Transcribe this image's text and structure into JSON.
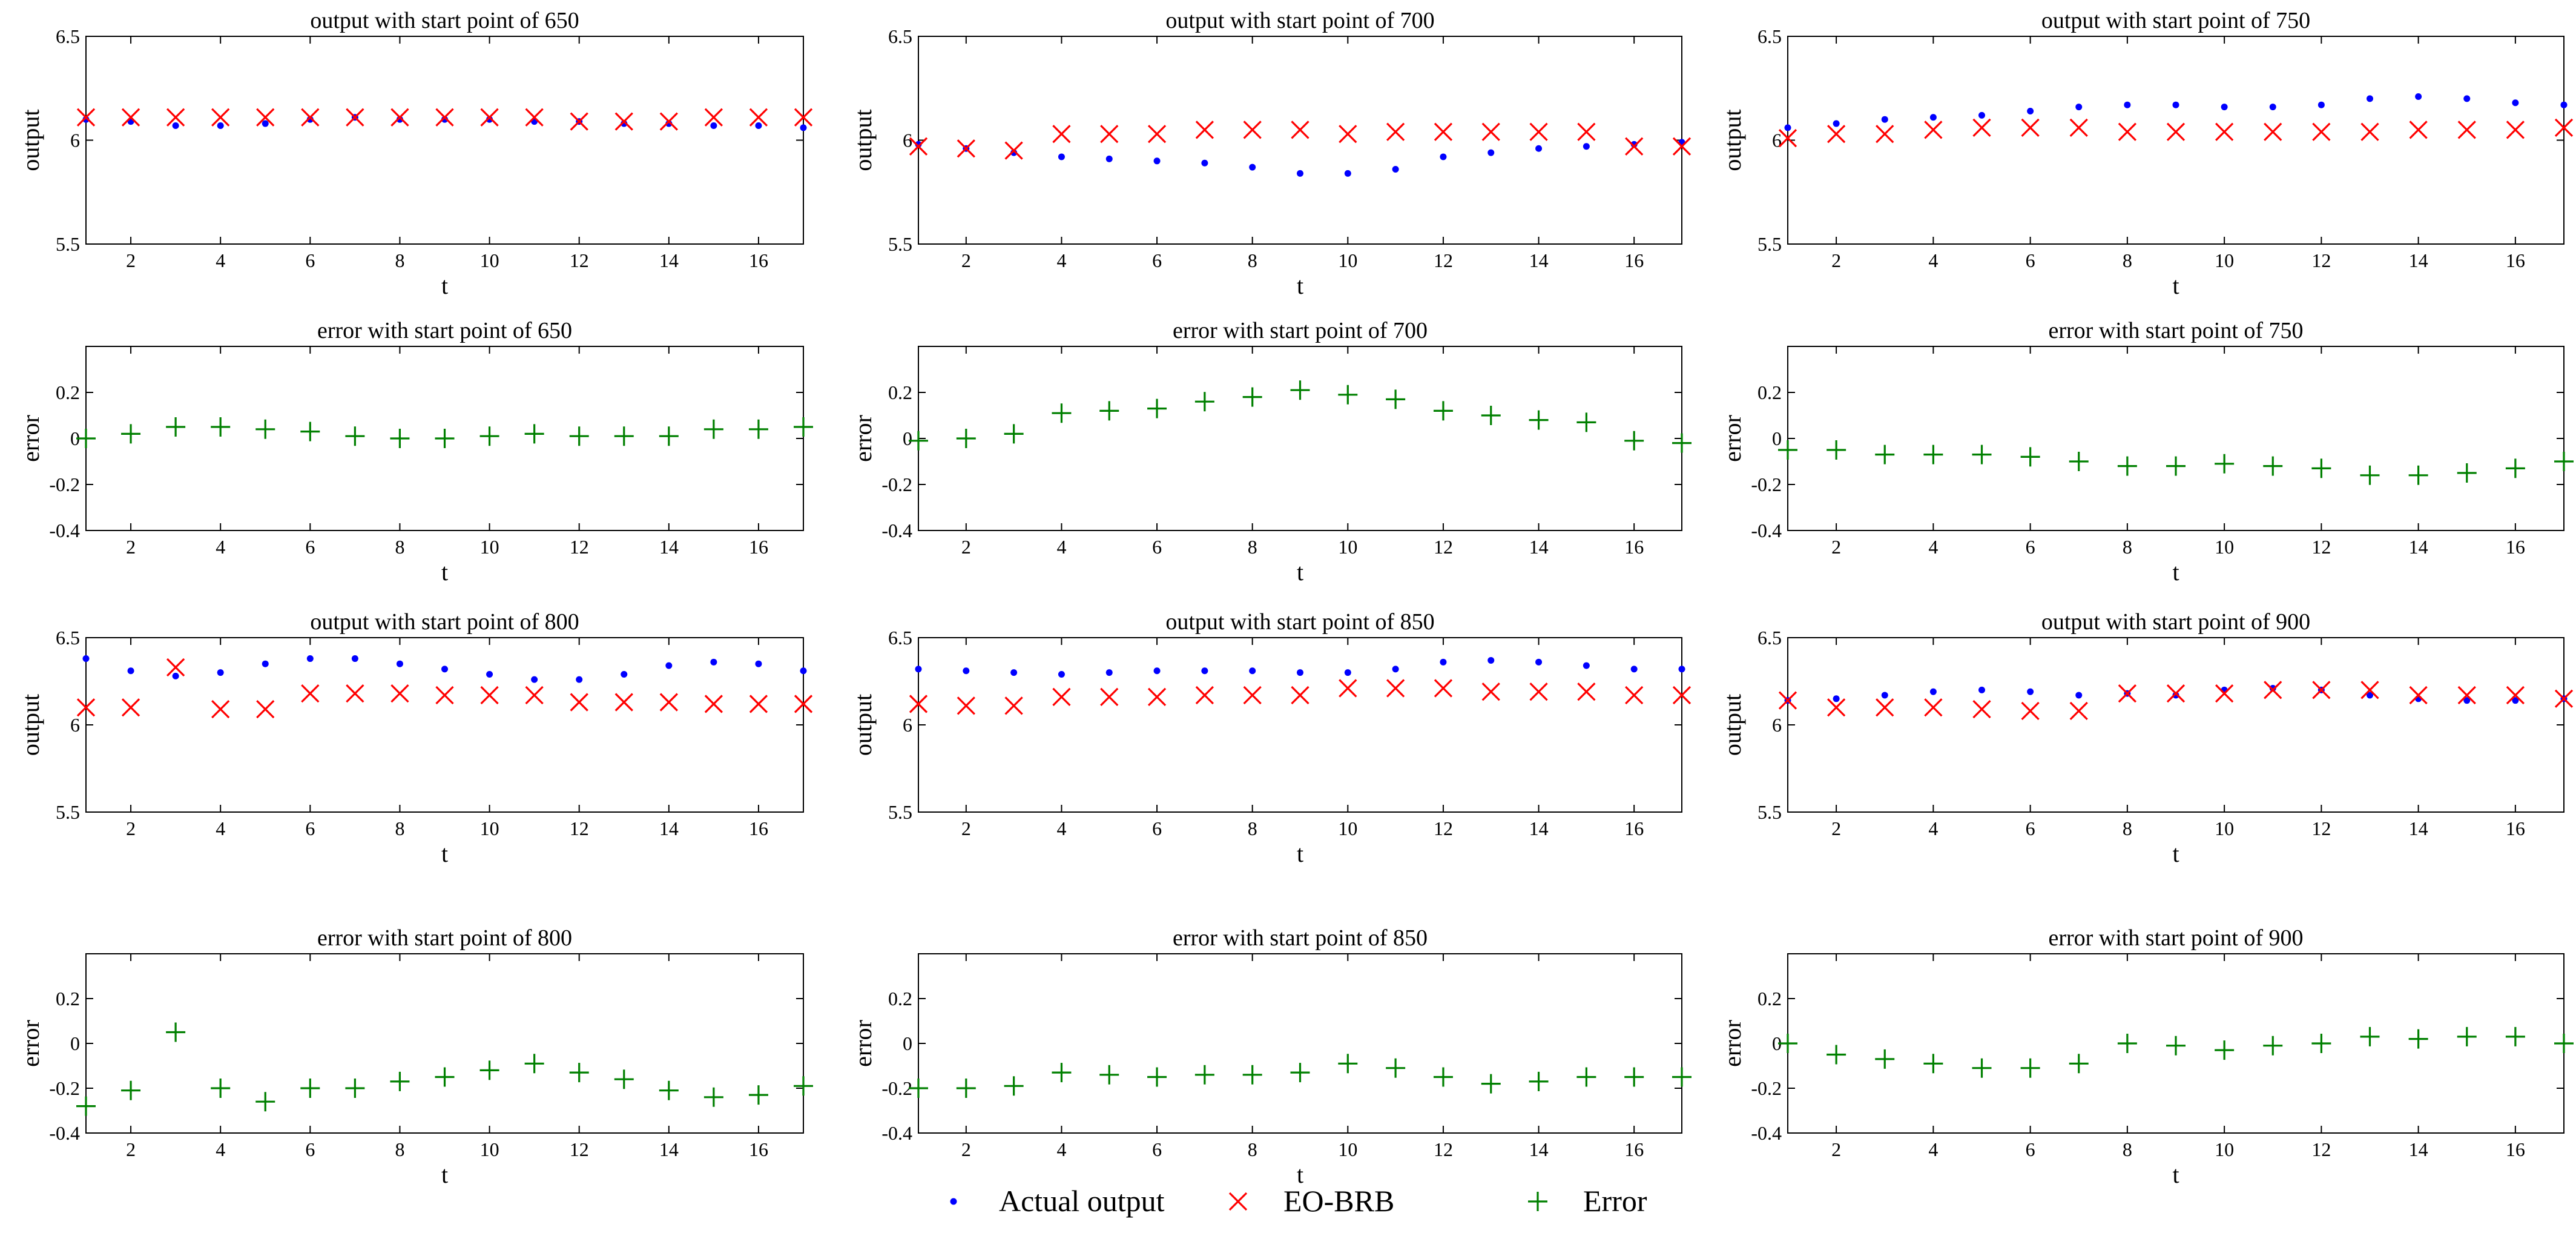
{
  "figure": {
    "legend": [
      {
        "label": "Actual output",
        "marker": "dot",
        "color": "#0000FF"
      },
      {
        "label": "EO-BRB",
        "marker": "x",
        "color": "#FF0000"
      },
      {
        "label": "Error",
        "marker": "plus",
        "color": "#008000"
      }
    ]
  },
  "chart_data": [
    {
      "type": "scatter",
      "kind": "output",
      "title": "output with start point of 650",
      "xlabel": "t",
      "ylabel": "output",
      "xlim": [
        1,
        17
      ],
      "ylim": [
        5.5,
        6.5
      ],
      "xticks": [
        2,
        4,
        6,
        8,
        10,
        12,
        14,
        16
      ],
      "xtick_labels": [
        "2",
        "4",
        "6",
        "8",
        "10",
        "12",
        "14",
        "16"
      ],
      "yticks": [
        5.5,
        6,
        6.5
      ],
      "ytick_labels": [
        "5.5",
        "6",
        "6.5"
      ],
      "x": [
        1,
        2,
        3,
        4,
        5,
        6,
        7,
        8,
        9,
        10,
        11,
        12,
        13,
        14,
        15,
        16,
        17
      ],
      "series": [
        {
          "name": "Actual output",
          "values": [
            6.1,
            6.09,
            6.07,
            6.07,
            6.08,
            6.1,
            6.11,
            6.1,
            6.1,
            6.1,
            6.09,
            6.09,
            6.08,
            6.08,
            6.07,
            6.07,
            6.06
          ]
        },
        {
          "name": "EO-BRB",
          "values": [
            6.11,
            6.11,
            6.11,
            6.11,
            6.11,
            6.11,
            6.11,
            6.11,
            6.11,
            6.11,
            6.11,
            6.09,
            6.09,
            6.09,
            6.11,
            6.11,
            6.11
          ]
        }
      ]
    },
    {
      "type": "scatter",
      "kind": "output",
      "title": "output with start point of 700",
      "xlabel": "t",
      "ylabel": "output",
      "xlim": [
        1,
        17
      ],
      "ylim": [
        5.5,
        6.5
      ],
      "xticks": [
        2,
        4,
        6,
        8,
        10,
        12,
        14,
        16
      ],
      "xtick_labels": [
        "2",
        "4",
        "6",
        "8",
        "10",
        "12",
        "14",
        "16"
      ],
      "yticks": [
        5.5,
        6,
        6.5
      ],
      "ytick_labels": [
        "5.5",
        "6",
        "6.5"
      ],
      "x": [
        1,
        2,
        3,
        4,
        5,
        6,
        7,
        8,
        9,
        10,
        11,
        12,
        13,
        14,
        15,
        16,
        17
      ],
      "series": [
        {
          "name": "Actual output",
          "values": [
            5.98,
            5.96,
            5.94,
            5.92,
            5.91,
            5.9,
            5.89,
            5.87,
            5.84,
            5.84,
            5.86,
            5.92,
            5.94,
            5.96,
            5.97,
            5.98,
            5.99
          ]
        },
        {
          "name": "EO-BRB",
          "values": [
            5.97,
            5.96,
            5.95,
            6.03,
            6.03,
            6.03,
            6.05,
            6.05,
            6.05,
            6.03,
            6.04,
            6.04,
            6.04,
            6.04,
            6.04,
            5.97,
            5.97
          ]
        }
      ]
    },
    {
      "type": "scatter",
      "kind": "output",
      "title": "output with start point of 750",
      "xlabel": "t",
      "ylabel": "output",
      "xlim": [
        1,
        17
      ],
      "ylim": [
        5.5,
        6.5
      ],
      "xticks": [
        2,
        4,
        6,
        8,
        10,
        12,
        14,
        16
      ],
      "xtick_labels": [
        "2",
        "4",
        "6",
        "8",
        "10",
        "12",
        "14",
        "16"
      ],
      "yticks": [
        5.5,
        6,
        6.5
      ],
      "ytick_labels": [
        "5.5",
        "6",
        "6.5"
      ],
      "x": [
        1,
        2,
        3,
        4,
        5,
        6,
        7,
        8,
        9,
        10,
        11,
        12,
        13,
        14,
        15,
        16,
        17
      ],
      "series": [
        {
          "name": "Actual output",
          "values": [
            6.06,
            6.08,
            6.1,
            6.11,
            6.12,
            6.14,
            6.16,
            6.17,
            6.17,
            6.16,
            6.16,
            6.17,
            6.2,
            6.21,
            6.2,
            6.18,
            6.17
          ]
        },
        {
          "name": "EO-BRB",
          "values": [
            6.01,
            6.03,
            6.03,
            6.05,
            6.06,
            6.06,
            6.06,
            6.04,
            6.04,
            6.04,
            6.04,
            6.04,
            6.04,
            6.05,
            6.05,
            6.05,
            6.06
          ]
        }
      ]
    },
    {
      "type": "scatter",
      "kind": "error",
      "title": "error with start point of 650",
      "xlabel": "t",
      "ylabel": "error",
      "xlim": [
        1,
        17
      ],
      "ylim": [
        -0.4,
        0.4
      ],
      "xticks": [
        2,
        4,
        6,
        8,
        10,
        12,
        14,
        16
      ],
      "xtick_labels": [
        "2",
        "4",
        "6",
        "8",
        "10",
        "12",
        "14",
        "16"
      ],
      "yticks": [
        -0.4,
        -0.2,
        0,
        0.2
      ],
      "ytick_labels": [
        "-0.4",
        "-0.2",
        "0",
        "0.2"
      ],
      "x": [
        1,
        2,
        3,
        4,
        5,
        6,
        7,
        8,
        9,
        10,
        11,
        12,
        13,
        14,
        15,
        16,
        17
      ],
      "series": [
        {
          "name": "Error",
          "values": [
            0.0,
            0.02,
            0.05,
            0.05,
            0.04,
            0.03,
            0.01,
            0.0,
            0.0,
            0.01,
            0.02,
            0.01,
            0.01,
            0.01,
            0.04,
            0.04,
            0.05
          ]
        }
      ]
    },
    {
      "type": "scatter",
      "kind": "error",
      "title": "error with start point of 700",
      "xlabel": "t",
      "ylabel": "error",
      "xlim": [
        1,
        17
      ],
      "ylim": [
        -0.4,
        0.4
      ],
      "xticks": [
        2,
        4,
        6,
        8,
        10,
        12,
        14,
        16
      ],
      "xtick_labels": [
        "2",
        "4",
        "6",
        "8",
        "10",
        "12",
        "14",
        "16"
      ],
      "yticks": [
        -0.4,
        -0.2,
        0,
        0.2
      ],
      "ytick_labels": [
        "-0.4",
        "-0.2",
        "0",
        "0.2"
      ],
      "x": [
        1,
        2,
        3,
        4,
        5,
        6,
        7,
        8,
        9,
        10,
        11,
        12,
        13,
        14,
        15,
        16,
        17
      ],
      "series": [
        {
          "name": "Error",
          "values": [
            -0.01,
            0.0,
            0.02,
            0.11,
            0.12,
            0.13,
            0.16,
            0.18,
            0.21,
            0.19,
            0.17,
            0.12,
            0.1,
            0.08,
            0.07,
            -0.01,
            -0.02
          ]
        }
      ]
    },
    {
      "type": "scatter",
      "kind": "error",
      "title": "error with start point of 750",
      "xlabel": "t",
      "ylabel": "error",
      "xlim": [
        1,
        17
      ],
      "ylim": [
        -0.4,
        0.4
      ],
      "xticks": [
        2,
        4,
        6,
        8,
        10,
        12,
        14,
        16
      ],
      "xtick_labels": [
        "2",
        "4",
        "6",
        "8",
        "10",
        "12",
        "14",
        "16"
      ],
      "yticks": [
        -0.4,
        -0.2,
        0,
        0.2
      ],
      "ytick_labels": [
        "-0.4",
        "-0.2",
        "0",
        "0.2"
      ],
      "x": [
        1,
        2,
        3,
        4,
        5,
        6,
        7,
        8,
        9,
        10,
        11,
        12,
        13,
        14,
        15,
        16,
        17
      ],
      "series": [
        {
          "name": "Error",
          "values": [
            -0.05,
            -0.05,
            -0.07,
            -0.07,
            -0.07,
            -0.08,
            -0.1,
            -0.12,
            -0.12,
            -0.11,
            -0.12,
            -0.13,
            -0.16,
            -0.16,
            -0.15,
            -0.13,
            -0.1
          ]
        }
      ]
    },
    {
      "type": "scatter",
      "kind": "output",
      "title": "output with start point of 800",
      "xlabel": "t",
      "ylabel": "output",
      "xlim": [
        1,
        17
      ],
      "ylim": [
        5.5,
        6.5
      ],
      "xticks": [
        2,
        4,
        6,
        8,
        10,
        12,
        14,
        16
      ],
      "xtick_labels": [
        "2",
        "4",
        "6",
        "8",
        "10",
        "12",
        "14",
        "16"
      ],
      "yticks": [
        5.5,
        6,
        6.5
      ],
      "ytick_labels": [
        "5.5",
        "6",
        "6.5"
      ],
      "x": [
        1,
        2,
        3,
        4,
        5,
        6,
        7,
        8,
        9,
        10,
        11,
        12,
        13,
        14,
        15,
        16,
        17
      ],
      "series": [
        {
          "name": "Actual output",
          "values": [
            6.38,
            6.31,
            6.28,
            6.3,
            6.35,
            6.38,
            6.38,
            6.35,
            6.32,
            6.29,
            6.26,
            6.26,
            6.29,
            6.34,
            6.36,
            6.35,
            6.31
          ]
        },
        {
          "name": "EO-BRB",
          "values": [
            6.1,
            6.1,
            6.33,
            6.09,
            6.09,
            6.18,
            6.18,
            6.18,
            6.17,
            6.17,
            6.17,
            6.13,
            6.13,
            6.13,
            6.12,
            6.12,
            6.12
          ]
        }
      ]
    },
    {
      "type": "scatter",
      "kind": "output",
      "title": "output with start point of 850",
      "xlabel": "t",
      "ylabel": "output",
      "xlim": [
        1,
        17
      ],
      "ylim": [
        5.5,
        6.5
      ],
      "xticks": [
        2,
        4,
        6,
        8,
        10,
        12,
        14,
        16
      ],
      "xtick_labels": [
        "2",
        "4",
        "6",
        "8",
        "10",
        "12",
        "14",
        "16"
      ],
      "yticks": [
        5.5,
        6,
        6.5
      ],
      "ytick_labels": [
        "5.5",
        "6",
        "6.5"
      ],
      "x": [
        1,
        2,
        3,
        4,
        5,
        6,
        7,
        8,
        9,
        10,
        11,
        12,
        13,
        14,
        15,
        16,
        17
      ],
      "series": [
        {
          "name": "Actual output",
          "values": [
            6.32,
            6.31,
            6.3,
            6.29,
            6.3,
            6.31,
            6.31,
            6.31,
            6.3,
            6.3,
            6.32,
            6.36,
            6.37,
            6.36,
            6.34,
            6.32,
            6.32
          ]
        },
        {
          "name": "EO-BRB",
          "values": [
            6.12,
            6.11,
            6.11,
            6.16,
            6.16,
            6.16,
            6.17,
            6.17,
            6.17,
            6.21,
            6.21,
            6.21,
            6.19,
            6.19,
            6.19,
            6.17,
            6.17
          ]
        }
      ]
    },
    {
      "type": "scatter",
      "kind": "output",
      "title": "output with start point of 900",
      "xlabel": "t",
      "ylabel": "output",
      "xlim": [
        1,
        17
      ],
      "ylim": [
        5.5,
        6.5
      ],
      "xticks": [
        2,
        4,
        6,
        8,
        10,
        12,
        14,
        16
      ],
      "xtick_labels": [
        "2",
        "4",
        "6",
        "8",
        "10",
        "12",
        "14",
        "16"
      ],
      "yticks": [
        5.5,
        6,
        6.5
      ],
      "ytick_labels": [
        "5.5",
        "6",
        "6.5"
      ],
      "x": [
        1,
        2,
        3,
        4,
        5,
        6,
        7,
        8,
        9,
        10,
        11,
        12,
        13,
        14,
        15,
        16,
        17
      ],
      "series": [
        {
          "name": "Actual output",
          "values": [
            6.14,
            6.15,
            6.17,
            6.19,
            6.2,
            6.19,
            6.17,
            6.18,
            6.17,
            6.2,
            6.21,
            6.2,
            6.17,
            6.15,
            6.14,
            6.14,
            6.15
          ]
        },
        {
          "name": "EO-BRB",
          "values": [
            6.14,
            6.1,
            6.1,
            6.1,
            6.09,
            6.08,
            6.08,
            6.18,
            6.18,
            6.18,
            6.2,
            6.2,
            6.2,
            6.17,
            6.17,
            6.17,
            6.15
          ]
        }
      ]
    },
    {
      "type": "scatter",
      "kind": "error",
      "title": "error with start point of 800",
      "xlabel": "t",
      "ylabel": "error",
      "xlim": [
        1,
        17
      ],
      "ylim": [
        -0.4,
        0.4
      ],
      "xticks": [
        2,
        4,
        6,
        8,
        10,
        12,
        14,
        16
      ],
      "xtick_labels": [
        "2",
        "4",
        "6",
        "8",
        "10",
        "12",
        "14",
        "16"
      ],
      "yticks": [
        -0.4,
        -0.2,
        0,
        0.2
      ],
      "ytick_labels": [
        "-0.4",
        "-0.2",
        "0",
        "0.2"
      ],
      "x": [
        1,
        2,
        3,
        4,
        5,
        6,
        7,
        8,
        9,
        10,
        11,
        12,
        13,
        14,
        15,
        16,
        17
      ],
      "series": [
        {
          "name": "Error",
          "values": [
            -0.28,
            -0.21,
            0.05,
            -0.2,
            -0.26,
            -0.2,
            -0.2,
            -0.17,
            -0.15,
            -0.12,
            -0.09,
            -0.13,
            -0.16,
            -0.21,
            -0.24,
            -0.23,
            -0.19
          ]
        }
      ]
    },
    {
      "type": "scatter",
      "kind": "error",
      "title": "error with start point of 850",
      "xlabel": "t",
      "ylabel": "error",
      "xlim": [
        1,
        17
      ],
      "ylim": [
        -0.4,
        0.4
      ],
      "xticks": [
        2,
        4,
        6,
        8,
        10,
        12,
        14,
        16
      ],
      "xtick_labels": [
        "2",
        "4",
        "6",
        "8",
        "10",
        "12",
        "14",
        "16"
      ],
      "yticks": [
        -0.4,
        -0.2,
        0,
        0.2
      ],
      "ytick_labels": [
        "-0.4",
        "-0.2",
        "0",
        "0.2"
      ],
      "x": [
        1,
        2,
        3,
        4,
        5,
        6,
        7,
        8,
        9,
        10,
        11,
        12,
        13,
        14,
        15,
        16,
        17
      ],
      "series": [
        {
          "name": "Error",
          "values": [
            -0.2,
            -0.2,
            -0.19,
            -0.13,
            -0.14,
            -0.15,
            -0.14,
            -0.14,
            -0.13,
            -0.09,
            -0.11,
            -0.15,
            -0.18,
            -0.17,
            -0.15,
            -0.15,
            -0.15
          ]
        }
      ]
    },
    {
      "type": "scatter",
      "kind": "error",
      "title": "error with start point of 900",
      "xlabel": "t",
      "ylabel": "error",
      "xlim": [
        1,
        17
      ],
      "ylim": [
        -0.4,
        0.4
      ],
      "xticks": [
        2,
        4,
        6,
        8,
        10,
        12,
        14,
        16
      ],
      "xtick_labels": [
        "2",
        "4",
        "6",
        "8",
        "10",
        "12",
        "14",
        "16"
      ],
      "yticks": [
        -0.4,
        -0.2,
        0,
        0.2
      ],
      "ytick_labels": [
        "-0.4",
        "-0.2",
        "0",
        "0.2"
      ],
      "x": [
        1,
        2,
        3,
        4,
        5,
        6,
        7,
        8,
        9,
        10,
        11,
        12,
        13,
        14,
        15,
        16,
        17
      ],
      "series": [
        {
          "name": "Error",
          "values": [
            0.0,
            -0.05,
            -0.07,
            -0.09,
            -0.11,
            -0.11,
            -0.09,
            0.0,
            -0.01,
            -0.03,
            -0.01,
            0.0,
            0.03,
            0.02,
            0.03,
            0.03,
            0.0
          ]
        }
      ]
    }
  ]
}
